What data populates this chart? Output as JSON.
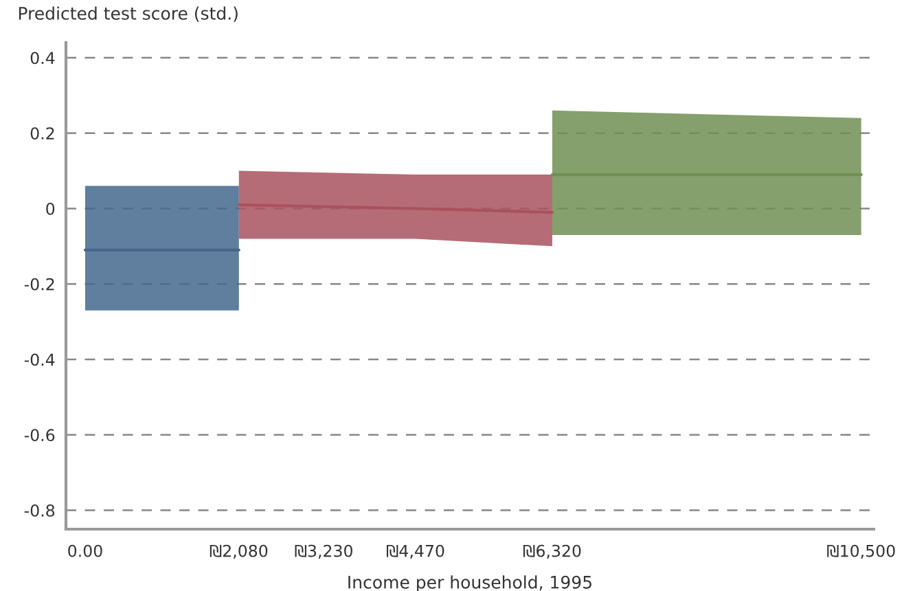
{
  "chart_data": {
    "type": "line",
    "xlabel": "Income per household, 1995",
    "ylabel": "Predicted test score (std.)",
    "series": [
      {
        "color": "#44678c",
        "x": [
          0,
          2080
        ],
        "values": [
          -0.11,
          -0.11
        ],
        "lower": [
          -0.27,
          -0.27
        ],
        "upper": [
          0.06,
          0.06
        ]
      },
      {
        "color": "#a8525e",
        "x": [
          2080,
          4470,
          6320
        ],
        "values": [
          0.01,
          0.0,
          -0.01
        ],
        "lower": [
          -0.08,
          -0.08,
          -0.1
        ],
        "upper": [
          0.1,
          0.09,
          0.09
        ]
      },
      {
        "color": "#708f52",
        "x": [
          6320,
          10500
        ],
        "values": [
          0.09,
          0.09
        ],
        "lower": [
          -0.07,
          -0.07
        ],
        "upper": [
          0.26,
          0.24
        ]
      }
    ],
    "xlim": [
      -260,
      10670
    ],
    "xticks": [
      {
        "value": 0,
        "label": "0.00"
      },
      {
        "value": 2080,
        "label": "₪2,080"
      },
      {
        "value": 3230,
        "label": "₪3,230"
      },
      {
        "value": 4470,
        "label": "₪4,470"
      },
      {
        "value": 6320,
        "label": "₪6,320"
      },
      {
        "value": 10500,
        "label": "₪10,500"
      }
    ],
    "ylim": [
      -0.85,
      0.44
    ],
    "yticks": [
      0.4,
      0.2,
      0,
      -0.2,
      -0.4,
      -0.6,
      -0.8
    ],
    "grid": "y",
    "line_style": "solid",
    "legend": false
  }
}
